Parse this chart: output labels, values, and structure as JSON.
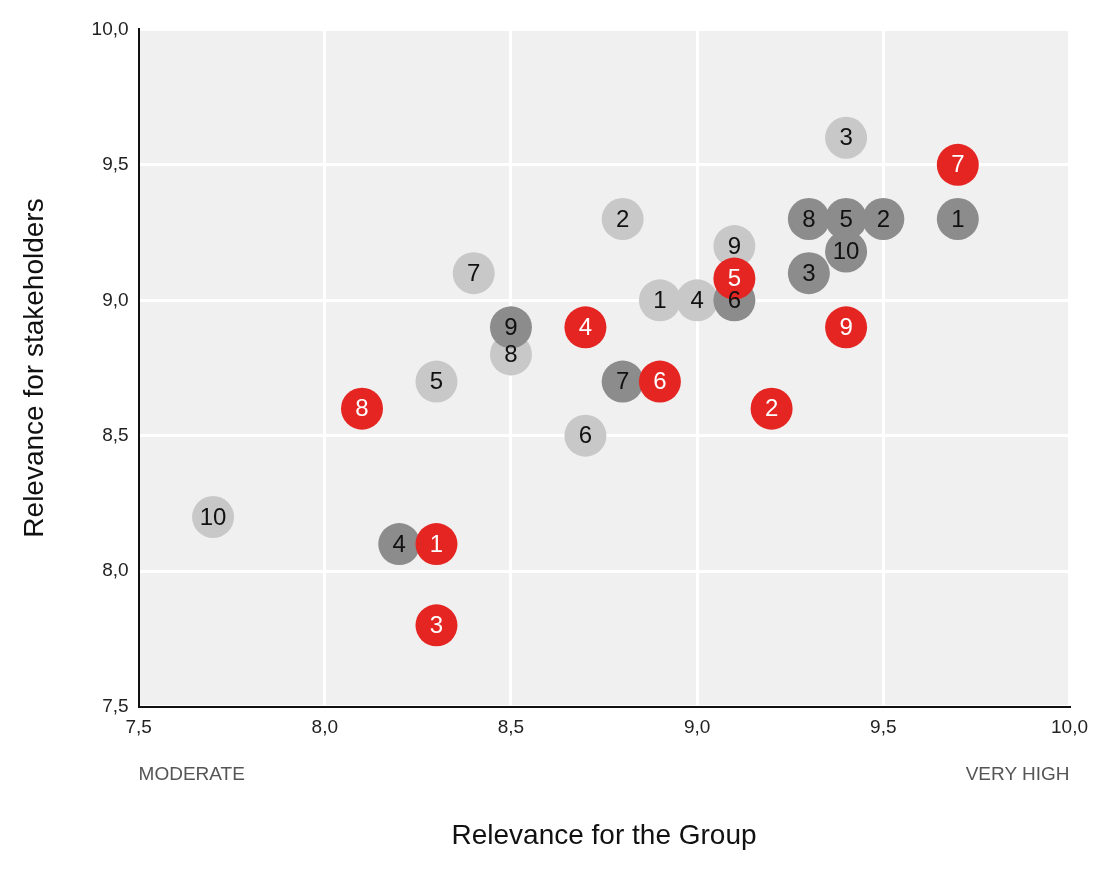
{
  "chart_data": {
    "type": "scatter",
    "xlabel": "Relevance for the Group",
    "ylabel": "Relevance for stakeholders",
    "xlim": [
      7.5,
      10
    ],
    "ylim": [
      7.5,
      10
    ],
    "xticks": [
      {
        "value": 7.5,
        "label": "7,5"
      },
      {
        "value": 8,
        "label": "8,0"
      },
      {
        "value": 8.5,
        "label": "8,5"
      },
      {
        "value": 9,
        "label": "9,0"
      },
      {
        "value": 9.5,
        "label": "9,5"
      },
      {
        "value": 10,
        "label": "10,0"
      }
    ],
    "yticks": [
      {
        "value": 7.5,
        "label": "7,5"
      },
      {
        "value": 8,
        "label": "8,0"
      },
      {
        "value": 8.5,
        "label": "8,5"
      },
      {
        "value": 9,
        "label": "9,0"
      },
      {
        "value": 9.5,
        "label": "9,5"
      },
      {
        "value": 10,
        "label": "10,0"
      }
    ],
    "grid": true,
    "legend": false,
    "marker": "circle",
    "annotations": [
      "MODERATE",
      "VERY HIGH",
      {
        "text": "1",
        "x": 8.9,
        "y": 9.0
      },
      {
        "text": "2",
        "x": 8.8,
        "y": 9.3
      },
      {
        "text": "3",
        "x": 9.4,
        "y": 9.6
      },
      {
        "text": "4",
        "x": 9.0,
        "y": 9.0
      },
      {
        "text": "5",
        "x": 8.3,
        "y": 8.7
      },
      {
        "text": "6",
        "x": 8.7,
        "y": 8.5
      },
      {
        "text": "7",
        "x": 8.4,
        "y": 9.1
      },
      {
        "text": "8",
        "x": 8.5,
        "y": 8.8
      },
      {
        "text": "9",
        "x": 9.1,
        "y": 9.2
      },
      {
        "text": "10",
        "x": 7.7,
        "y": 8.2
      },
      {
        "text": "1",
        "x": 9.7,
        "y": 9.3
      },
      {
        "text": "2",
        "x": 9.5,
        "y": 9.3
      },
      {
        "text": "3",
        "x": 9.3,
        "y": 9.1
      },
      {
        "text": "4",
        "x": 8.2,
        "y": 8.1
      },
      {
        "text": "5",
        "x": 9.4,
        "y": 9.3
      },
      {
        "text": "6",
        "x": 9.1,
        "y": 9.0
      },
      {
        "text": "7",
        "x": 8.8,
        "y": 8.7
      },
      {
        "text": "8",
        "x": 9.3,
        "y": 9.3
      },
      {
        "text": "9",
        "x": 8.5,
        "y": 8.9
      },
      {
        "text": "10",
        "x": 9.4,
        "y": 9.18
      },
      {
        "text": "1",
        "x": 8.3,
        "y": 8.1
      },
      {
        "text": "2",
        "x": 9.2,
        "y": 8.6
      },
      {
        "text": "3",
        "x": 8.3,
        "y": 7.8
      },
      {
        "text": "4",
        "x": 8.7,
        "y": 8.9
      },
      {
        "text": "5",
        "x": 9.1,
        "y": 9.08
      },
      {
        "text": "6",
        "x": 8.9,
        "y": 8.7
      },
      {
        "text": "7",
        "x": 9.7,
        "y": 9.5
      },
      {
        "text": "8",
        "x": 8.1,
        "y": 8.6
      },
      {
        "text": "9",
        "x": 9.4,
        "y": 8.9
      }
    ],
    "series": [
      {
        "color": "#c8c8c8",
        "x": [
          8.9,
          8.8,
          9.4,
          9.0,
          8.3,
          8.7,
          8.4,
          8.5,
          9.1,
          7.7
        ],
        "values": [
          9.0,
          9.3,
          9.6,
          9.0,
          8.7,
          8.5,
          9.1,
          8.8,
          9.2,
          8.2
        ]
      },
      {
        "color": "#8c8c8c",
        "x": [
          9.7,
          9.5,
          9.3,
          8.2,
          9.4,
          9.1,
          8.8,
          9.3,
          8.5,
          9.4
        ],
        "values": [
          9.3,
          9.3,
          9.1,
          8.1,
          9.3,
          9.0,
          8.7,
          9.3,
          8.9,
          9.18
        ]
      },
      {
        "color": "#e52521",
        "x": [
          8.3,
          9.2,
          8.3,
          8.7,
          9.1,
          8.9,
          9.7,
          8.1,
          9.4
        ],
        "values": [
          8.1,
          8.6,
          7.8,
          8.9,
          9.08,
          8.7,
          9.5,
          8.6,
          8.9
        ]
      }
    ]
  }
}
